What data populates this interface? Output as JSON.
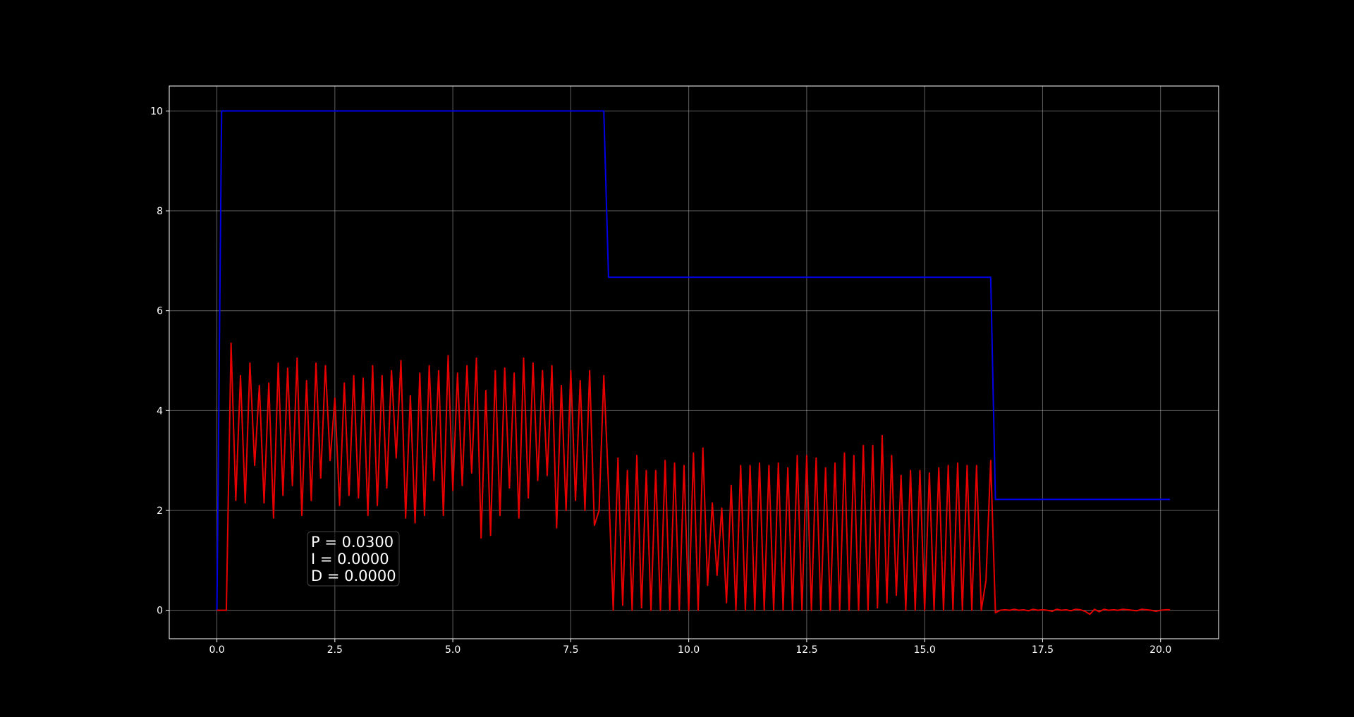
{
  "chart_data": {
    "type": "line",
    "annotation": [
      "P = 0.0300",
      "I = 0.0000",
      "D = 0.0000"
    ],
    "xlim": [
      -1.01,
      21.23
    ],
    "ylim": [
      -0.57,
      10.5
    ],
    "xticks": [
      {
        "value": 0,
        "label": "0.0"
      },
      {
        "value": 2.5,
        "label": "2.5"
      },
      {
        "value": 5,
        "label": "5.0"
      },
      {
        "value": 7.5,
        "label": "7.5"
      },
      {
        "value": 10,
        "label": "10.0"
      },
      {
        "value": 12.5,
        "label": "12.5"
      },
      {
        "value": 15,
        "label": "15.0"
      },
      {
        "value": 17.5,
        "label": "17.5"
      },
      {
        "value": 20,
        "label": "20.0"
      }
    ],
    "yticks": [
      0,
      2,
      4,
      6,
      8,
      10
    ],
    "grid": true,
    "series": [
      {
        "color": "#0000e6",
        "x": [
          0,
          0.1,
          8.2,
          8.3,
          16.4,
          16.5,
          20.2
        ],
        "values": [
          0,
          10,
          10,
          6.67,
          6.67,
          2.22,
          2.22
        ]
      },
      {
        "color": "#e60000",
        "x": [
          0,
          0.1,
          0.2,
          0.3,
          0.4,
          0.5,
          0.6,
          0.7,
          0.8,
          0.9,
          1,
          1.1,
          1.2,
          1.3,
          1.4,
          1.5,
          1.6,
          1.7,
          1.8,
          1.9,
          2,
          2.1,
          2.2,
          2.3,
          2.4,
          2.5,
          2.6,
          2.7,
          2.8,
          2.9,
          3,
          3.1,
          3.2,
          3.3,
          3.4,
          3.5,
          3.6,
          3.7,
          3.8,
          3.9,
          4,
          4.1,
          4.2,
          4.3,
          4.4,
          4.5,
          4.6,
          4.7,
          4.8,
          4.9,
          5,
          5.1,
          5.2,
          5.3,
          5.4,
          5.5,
          5.6,
          5.7,
          5.8,
          5.9,
          6,
          6.1,
          6.2,
          6.3,
          6.4,
          6.5,
          6.6,
          6.7,
          6.8,
          6.9,
          7,
          7.1,
          7.2,
          7.3,
          7.4,
          7.5,
          7.6,
          7.7,
          7.8,
          7.9,
          8,
          8.1,
          8.2,
          8.3,
          8.4,
          8.5,
          8.6,
          8.7,
          8.8,
          8.9,
          9,
          9.1,
          9.2,
          9.3,
          9.4,
          9.5,
          9.6,
          9.7,
          9.8,
          9.9,
          10,
          10.1,
          10.2,
          10.3,
          10.4,
          10.5,
          10.6,
          10.7,
          10.8,
          10.9,
          11,
          11.1,
          11.2,
          11.3,
          11.4,
          11.5,
          11.6,
          11.7,
          11.8,
          11.9,
          12,
          12.1,
          12.2,
          12.3,
          12.4,
          12.5,
          12.6,
          12.7,
          12.8,
          12.9,
          13,
          13.1,
          13.2,
          13.3,
          13.4,
          13.5,
          13.6,
          13.7,
          13.8,
          13.9,
          14,
          14.1,
          14.2,
          14.3,
          14.4,
          14.5,
          14.6,
          14.7,
          14.8,
          14.9,
          15,
          15.1,
          15.2,
          15.3,
          15.4,
          15.5,
          15.6,
          15.7,
          15.8,
          15.9,
          16,
          16.1,
          16.2,
          16.3,
          16.4,
          16.5,
          16.6,
          16.7,
          16.8,
          16.9,
          17,
          17.1,
          17.2,
          17.3,
          17.4,
          17.5,
          17.6,
          17.7,
          17.8,
          17.9,
          18,
          18.1,
          18.2,
          18.3,
          18.4,
          18.5,
          18.6,
          18.7,
          18.8,
          18.9,
          19,
          19.1,
          19.2,
          19.3,
          19.4,
          19.5,
          19.6,
          19.7,
          19.8,
          19.9,
          20,
          20.1,
          20.2
        ],
        "values": [
          0,
          0,
          0,
          5.35,
          2.2,
          4.7,
          2.15,
          4.95,
          2.9,
          4.5,
          2.15,
          4.55,
          1.85,
          4.95,
          2.3,
          4.85,
          2.5,
          5.05,
          1.9,
          4.6,
          2.2,
          4.95,
          2.65,
          4.9,
          3.0,
          4.25,
          2.1,
          4.55,
          2.3,
          4.7,
          2.25,
          4.65,
          1.9,
          4.9,
          2.1,
          4.7,
          2.45,
          4.8,
          3.05,
          5.0,
          1.85,
          4.3,
          1.75,
          4.75,
          1.9,
          4.9,
          2.6,
          4.8,
          1.9,
          5.1,
          2.4,
          4.75,
          2.5,
          4.9,
          2.75,
          5.05,
          1.45,
          4.4,
          1.5,
          4.8,
          1.9,
          4.85,
          2.45,
          4.75,
          1.85,
          5.05,
          2.25,
          4.95,
          2.6,
          4.8,
          2.7,
          4.9,
          1.65,
          4.5,
          2.0,
          4.8,
          2.2,
          4.6,
          2.0,
          4.8,
          1.7,
          2.0,
          4.7,
          2.5,
          0,
          3.05,
          0.1,
          2.8,
          0,
          3.1,
          0.05,
          2.8,
          0,
          2.8,
          0,
          3.0,
          0,
          2.95,
          0,
          2.9,
          0,
          3.15,
          0,
          3.25,
          0.5,
          2.15,
          0.7,
          2.05,
          0.15,
          2.5,
          0,
          2.9,
          0,
          2.9,
          0,
          2.95,
          0,
          2.9,
          0,
          2.95,
          0,
          2.85,
          0,
          3.1,
          0,
          3.1,
          0,
          3.05,
          0,
          2.85,
          0,
          2.95,
          0,
          3.15,
          0,
          3.1,
          0,
          3.3,
          0,
          3.3,
          0.05,
          3.5,
          0.15,
          3.1,
          0.3,
          2.7,
          0,
          2.8,
          0,
          2.8,
          0,
          2.75,
          0,
          2.85,
          0,
          2.9,
          0,
          2.95,
          0,
          2.9,
          0,
          2.9,
          0,
          0.6,
          3.0,
          -0.05,
          0,
          0.01,
          0,
          0.02,
          0,
          0.01,
          -0.01,
          0.02,
          0,
          0.01,
          0,
          -0.02,
          0.02,
          0,
          0.01,
          -0.01,
          0.02,
          0.01,
          -0.02,
          -0.08,
          0.02,
          -0.03,
          0.02,
          0,
          0.01,
          0,
          0.02,
          0.01,
          0,
          -0.01,
          0.02,
          0.01,
          0,
          -0.02,
          0,
          0.01,
          0.01
        ]
      }
    ]
  }
}
